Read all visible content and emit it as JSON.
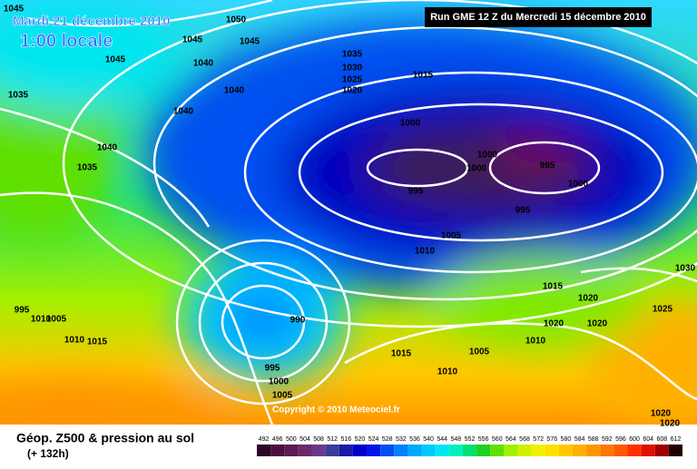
{
  "header": {
    "date": "Mardi 21 décembre 2010",
    "time": "1:00 locale",
    "run": "Run GME 12 Z du Mercredi 15 décembre 2010"
  },
  "copyright": "Copyright © 2010 Meteociel.fr",
  "footer": {
    "title": "Géop. Z500 & pression au sol",
    "lead": "(+ 132h)"
  },
  "isobar_labels": [
    1045,
    1050,
    1045,
    1045,
    1045,
    1040,
    1035,
    1030,
    1025,
    1020,
    1015,
    1040,
    1035,
    1040,
    1000,
    1040,
    1000,
    1000,
    995,
    1035,
    995,
    1000,
    995,
    1005,
    1010,
    1030,
    1015,
    1020,
    995,
    1010,
    1005,
    990,
    1020,
    1020,
    1025,
    1010,
    1015,
    1015,
    1005,
    1010,
    995,
    1010,
    1000,
    1005,
    1020,
    1020
  ],
  "scale": {
    "values": [
      492,
      496,
      500,
      504,
      508,
      512,
      516,
      520,
      524,
      528,
      532,
      536,
      540,
      544,
      548,
      552,
      556,
      560,
      564,
      568,
      572,
      576,
      580,
      584,
      588,
      592,
      596,
      600,
      604,
      608,
      612
    ],
    "colors": [
      "#2d0628",
      "#4b0f3f",
      "#5e1a52",
      "#6b2a6b",
      "#6a3a8a",
      "#3c3c9a",
      "#1a1aa8",
      "#0000c8",
      "#0014e6",
      "#0050f0",
      "#0080ff",
      "#00a8ff",
      "#00c8ff",
      "#00e6f0",
      "#00f0c0",
      "#00e070",
      "#20d020",
      "#60e000",
      "#a0f000",
      "#d0f000",
      "#f0f000",
      "#ffe000",
      "#ffc800",
      "#ffb000",
      "#ff9600",
      "#ff7800",
      "#ff5a00",
      "#ff3000",
      "#e01000",
      "#a00000",
      "#200000"
    ]
  }
}
